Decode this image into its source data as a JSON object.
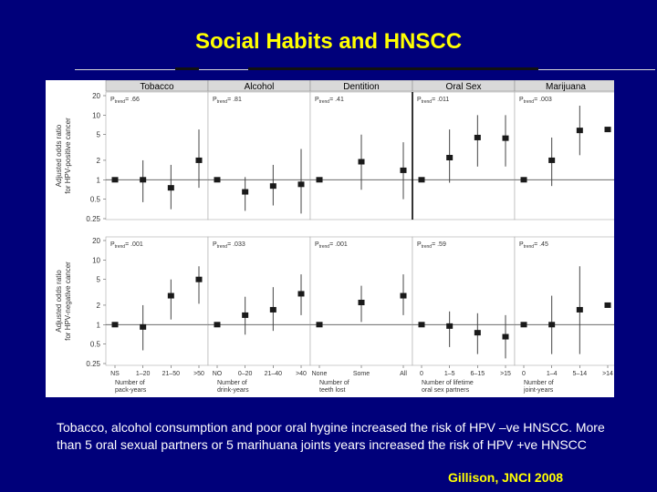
{
  "slide": {
    "title": "Social Habits and HNSCC",
    "caption": "Tobacco, alcohol consumption and poor oral hygine increased the risk of HPV –ve HNSCC. More than 5 oral sexual partners or 5 marihuana joints years increased the risk of HPV +ve HNSCC",
    "citation": "Gillison, JNCI 2008"
  },
  "chart_data": {
    "type": "scatter",
    "subtype": "forest-plot grid (point estimate with 95% CI whiskers), log-scale y",
    "yscale": "log",
    "yticks": [
      "0.25",
      "0.5",
      "1",
      "2",
      "5",
      "10",
      "20"
    ],
    "ylim": [
      0.25,
      20
    ],
    "reference_line": 1,
    "rows": [
      {
        "key": "pos",
        "ylabel": [
          "Adjusted odds ratio",
          "for HPV-positive cancer"
        ]
      },
      {
        "key": "neg",
        "ylabel": [
          "Adjusted odds ratio",
          "for HPV-negative cancer"
        ]
      }
    ],
    "panels": [
      {
        "title": "Tobacco",
        "xlabel": [
          "Number of",
          "pack-years"
        ],
        "categories": [
          "NS",
          "1–20",
          "21–50",
          ">50"
        ],
        "pos": {
          "p_label": "= .66",
          "or": [
            1,
            1,
            0.75,
            2
          ],
          "lo": [
            null,
            0.45,
            0.35,
            0.75
          ],
          "hi": [
            null,
            2,
            1.7,
            6
          ]
        },
        "neg": {
          "p_label": "= .001",
          "or": [
            1,
            0.92,
            2.8,
            5
          ],
          "lo": [
            null,
            0.4,
            1.2,
            2.1
          ],
          "hi": [
            null,
            2,
            5,
            8
          ]
        }
      },
      {
        "title": "Alcohol",
        "xlabel": [
          "Number of",
          "drink-years"
        ],
        "categories": [
          "NO",
          "0–20",
          "21–40",
          ">40"
        ],
        "pos": {
          "p_label": "= .81",
          "or": [
            1,
            0.65,
            0.8,
            0.85
          ],
          "lo": [
            null,
            0.33,
            0.4,
            0.3
          ],
          "hi": [
            null,
            1.1,
            1.7,
            3
          ]
        },
        "neg": {
          "p_label": "= .033",
          "or": [
            1,
            1.4,
            1.7,
            3
          ],
          "lo": [
            null,
            0.7,
            0.8,
            1.4
          ],
          "hi": [
            null,
            2.7,
            3.8,
            6
          ]
        }
      },
      {
        "title": "Dentition",
        "xlabel": [
          "Number of",
          "teeth lost"
        ],
        "categories": [
          "None",
          "Some",
          "All"
        ],
        "pos": {
          "p_label": "= .41",
          "or": [
            1,
            1.9,
            1.4
          ],
          "lo": [
            null,
            0.7,
            0.5
          ],
          "hi": [
            null,
            5,
            3.8
          ]
        },
        "neg": {
          "p_label": "= .001",
          "or": [
            1,
            2.2,
            2.8
          ],
          "lo": [
            null,
            1.1,
            1.4
          ],
          "hi": [
            null,
            4,
            6
          ]
        }
      },
      {
        "title": "Oral Sex",
        "xlabel": [
          "Number of lifetime",
          "oral sex partners"
        ],
        "categories": [
          "0",
          "1–5",
          "6–15",
          ">15"
        ],
        "pos": {
          "p_label": "= .011",
          "or": [
            1,
            2.2,
            4.5,
            4.4
          ],
          "lo": [
            null,
            0.9,
            1.6,
            1.6
          ],
          "hi": [
            null,
            6,
            10,
            10
          ]
        },
        "neg": {
          "p_label": "= .59",
          "or": [
            1,
            0.95,
            0.75,
            0.65
          ],
          "lo": [
            null,
            0.45,
            0.35,
            0.3
          ],
          "hi": [
            null,
            1.6,
            1.5,
            1.4
          ]
        }
      },
      {
        "title": "Marijuana",
        "xlabel": [
          "Number of",
          "joint-years"
        ],
        "categories": [
          "0",
          "1–4",
          "5–14",
          ">14"
        ],
        "pos": {
          "p_label": "= .003",
          "or": [
            1,
            2,
            5.8,
            6
          ],
          "lo": [
            null,
            0.8,
            2.4,
            null
          ],
          "hi": [
            null,
            4.5,
            14,
            null
          ]
        },
        "neg": {
          "p_label": "= .45",
          "or": [
            1,
            1,
            1.7,
            2
          ],
          "lo": [
            null,
            0.35,
            0.35,
            null
          ],
          "hi": [
            null,
            2.8,
            8,
            null
          ]
        }
      }
    ],
    "p_prefix": "P",
    "p_subscript": "trend"
  }
}
